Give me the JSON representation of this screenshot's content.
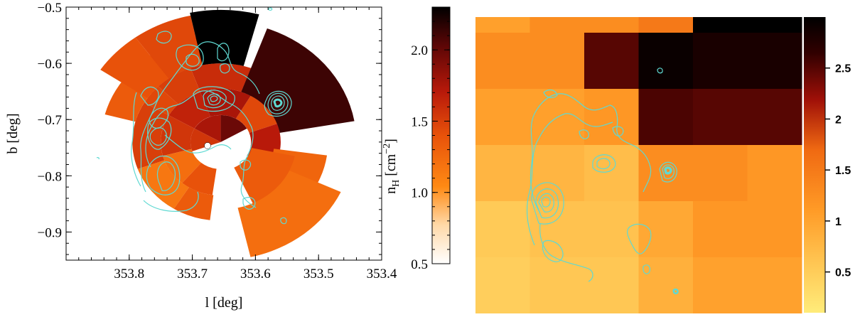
{
  "chart_data": [
    {
      "type": "polar-sector-map",
      "xlabel": "l [deg]",
      "ylabel": "b [deg]",
      "xlim": [
        353.9,
        353.4
      ],
      "ylim": [
        -0.95,
        -0.5
      ],
      "x_ticks": [
        "353.8",
        "353.7",
        "353.6",
        "353.5",
        "353.4"
      ],
      "y_ticks": [
        "−0.5",
        "−0.6",
        "−0.7",
        "−0.8",
        "−0.9"
      ],
      "center": {
        "l": 353.655,
        "b": -0.74
      },
      "sectors": [
        {
          "r": [
            0.0,
            0.048
          ],
          "angle": [
            30,
            90
          ],
          "nH": 1.95
        },
        {
          "r": [
            0.0,
            0.048
          ],
          "angle": [
            90,
            150
          ],
          "nH": 1.75
        },
        {
          "r": [
            0.0,
            0.048
          ],
          "angle": [
            150,
            200
          ],
          "nH": 1.55
        },
        {
          "r": [
            0.048,
            0.095
          ],
          "angle": [
            20,
            60
          ],
          "nH": 1.45
        },
        {
          "r": [
            0.048,
            0.095
          ],
          "angle": [
            60,
            110
          ],
          "nH": 1.75
        },
        {
          "r": [
            0.048,
            0.095
          ],
          "angle": [
            110,
            150
          ],
          "nH": 1.65
        },
        {
          "r": [
            0.048,
            0.095
          ],
          "angle": [
            150,
            195
          ],
          "nH": 1.55
        },
        {
          "r": [
            0.048,
            0.095
          ],
          "angle": [
            195,
            230
          ],
          "nH": 1.25
        },
        {
          "r": [
            0.048,
            0.095
          ],
          "angle": [
            230,
            262
          ],
          "nH": 1.4
        },
        {
          "r": [
            0.048,
            0.095
          ],
          "angle": [
            330,
            380
          ],
          "nH": 1.7
        },
        {
          "r": [
            0.095,
            0.14
          ],
          "angle": [
            12,
            70
          ],
          "nH": 2.05
        },
        {
          "r": [
            0.095,
            0.14
          ],
          "angle": [
            70,
            110
          ],
          "nH": 1.6
        },
        {
          "r": [
            0.095,
            0.14
          ],
          "angle": [
            110,
            135
          ],
          "nH": 1.5
        },
        {
          "r": [
            0.095,
            0.14
          ],
          "angle": [
            135,
            150
          ],
          "nH": 1.45
        },
        {
          "r": [
            0.095,
            0.14
          ],
          "angle": [
            150,
            200
          ],
          "nH": 1.5
        },
        {
          "r": [
            0.095,
            0.14
          ],
          "angle": [
            200,
            238
          ],
          "nH": 1.2
        },
        {
          "r": [
            0.095,
            0.14
          ],
          "angle": [
            238,
            263
          ],
          "nH": 1.35
        },
        {
          "r": [
            0.14,
            0.19
          ],
          "angle": [
            78,
            110
          ],
          "nH": 1.55
        },
        {
          "r": [
            0.14,
            0.19
          ],
          "angle": [
            110,
            135
          ],
          "nH": 1.6
        },
        {
          "r": [
            0.14,
            0.19
          ],
          "angle": [
            135,
            165
          ],
          "nH": 1.35
        },
        {
          "r": [
            0.14,
            0.23
          ],
          "angle": [
            102,
            126
          ],
          "nH": 1.45
        },
        {
          "r": [
            0.14,
            0.23
          ],
          "angle": [
            126,
            146
          ],
          "nH": 1.4
        },
        {
          "r": [
            0.095,
            0.215
          ],
          "angle": [
            10,
            70
          ],
          "nH": 2.1
        },
        {
          "r": [
            0.14,
            0.235
          ],
          "angle": [
            75,
            102
          ],
          "nH": 2.3
        },
        {
          "r": [
            0.085,
            0.17
          ],
          "angle": [
            -65,
            -8
          ],
          "nH": 1.3
        },
        {
          "r": [
            0.12,
            0.21
          ],
          "angle": [
            -77,
            -25
          ],
          "nH": 1.25
        },
        {
          "r": [
            0.05,
            0.12
          ],
          "angle": [
            -65,
            -12
          ],
          "nH": 1.35
        }
      ]
    },
    {
      "type": "colorbar",
      "label_main": "n",
      "label_sub": "H",
      "label_unit": " [cm",
      "label_exp": "−2",
      "label_close": "]",
      "range": [
        0.5,
        2.3
      ],
      "ticks": [
        {
          "value": 0.5,
          "label": "0.5"
        },
        {
          "value": 1.0,
          "label": "1.0"
        },
        {
          "value": 1.5,
          "label": "1.5"
        },
        {
          "value": 2.0,
          "label": "2.0"
        }
      ]
    },
    {
      "type": "heatmap",
      "columns": 6,
      "rows": 5,
      "top_strip": [
        1.0,
        1.2,
        1.2,
        1.4,
        3.0,
        3.0
      ],
      "values": [
        [
          1.2,
          1.2,
          2.35,
          2.9,
          2.75,
          2.75
        ],
        [
          1.0,
          1.0,
          1.1,
          2.4,
          2.35,
          2.35
        ],
        [
          0.75,
          0.75,
          0.65,
          1.2,
          1.2,
          1.1
        ],
        [
          0.5,
          0.6,
          0.6,
          0.9,
          1.1,
          1.1
        ]
      ],
      "color_range": [
        0.1,
        3.0
      ],
      "colorbar_ticks": [
        {
          "value": 0.5,
          "label": "0.5"
        },
        {
          "value": 1.0,
          "label": "1"
        },
        {
          "value": 1.5,
          "label": "1.5"
        },
        {
          "value": 2.0,
          "label": "2"
        },
        {
          "value": 2.5,
          "label": "2.5"
        }
      ]
    }
  ],
  "colors": {
    "contour": "#5fd9d2",
    "axis": "#000000",
    "colormap": [
      "#ffffff",
      "#ffd9a8",
      "#ff8a14",
      "#e8520a",
      "#b8190a",
      "#5c0606",
      "#000000"
    ],
    "colormap_hot": [
      "#ffec7a",
      "#ffc350",
      "#ff9a26",
      "#f06a12",
      "#a01008",
      "#300000",
      "#000000"
    ]
  }
}
